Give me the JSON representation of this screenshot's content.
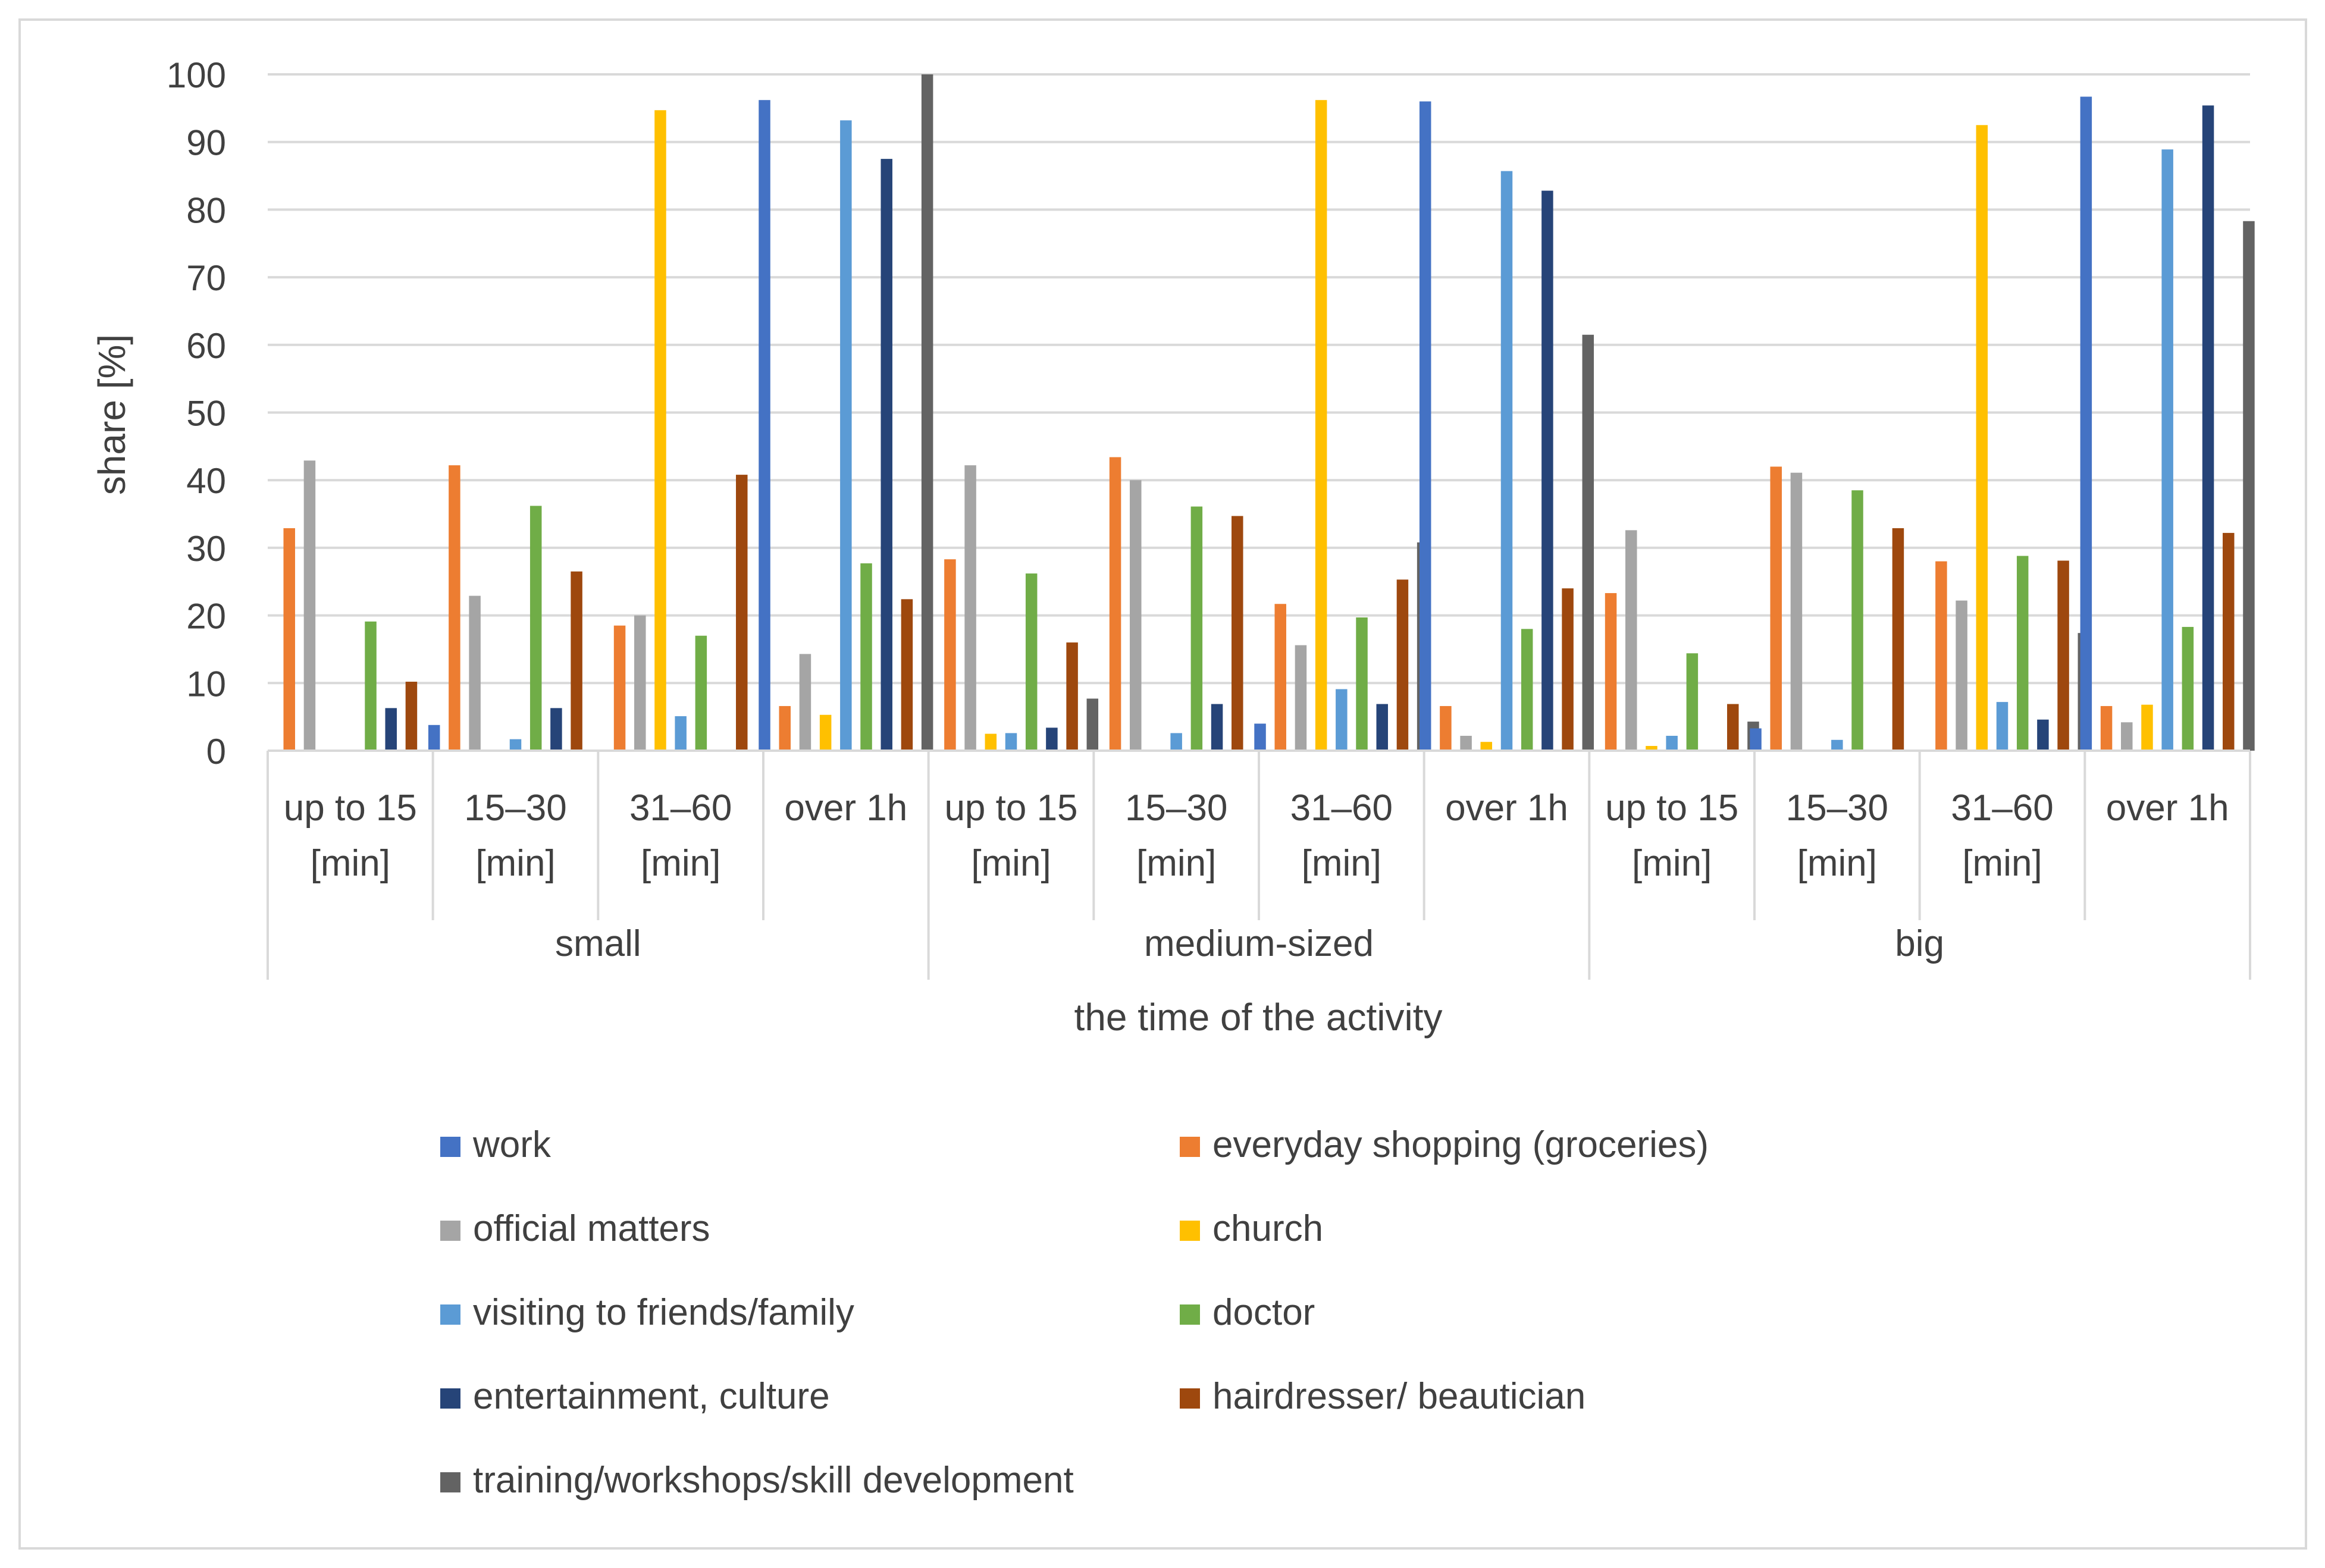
{
  "chart_data": {
    "type": "bar",
    "ylabel": "share [%]",
    "xlabel": "the time of the activity",
    "ylim": [
      0,
      100
    ],
    "yticks": [
      0,
      10,
      20,
      30,
      40,
      50,
      60,
      70,
      80,
      90,
      100
    ],
    "grid": true,
    "legend_position": "bottom",
    "groups": [
      "small",
      "medium-sized",
      "big"
    ],
    "subcategories": [
      [
        "up to 15",
        "[min]"
      ],
      [
        "15–30",
        "[min]"
      ],
      [
        "31–60",
        "[min]"
      ],
      [
        "over 1h",
        ""
      ]
    ],
    "categories": [
      "small | up to 15 [min]",
      "small | 15–30 [min]",
      "small | 31–60 [min]",
      "small | over 1h",
      "medium-sized | up to 15 [min]",
      "medium-sized | 15–30 [min]",
      "medium-sized | 31–60 [min]",
      "medium-sized | over 1h",
      "big | up to 15 [min]",
      "big | 15–30 [min]",
      "big | 31–60 [min]",
      "big | over 1h"
    ],
    "series": [
      {
        "name": "work",
        "color": "#4472C4",
        "values": [
          0,
          3.8,
          0,
          96.2,
          0,
          0,
          4.0,
          96.0,
          0,
          3.3,
          0,
          96.7
        ]
      },
      {
        "name": "everyday shopping (groceries)",
        "color": "#ED7D31",
        "values": [
          32.9,
          42.2,
          18.5,
          6.6,
          28.3,
          43.4,
          21.7,
          6.6,
          23.3,
          42.0,
          28.0,
          6.6
        ]
      },
      {
        "name": "official matters",
        "color": "#A5A5A5",
        "values": [
          42.9,
          22.9,
          20.0,
          14.3,
          42.2,
          40.0,
          15.6,
          2.2,
          32.6,
          41.1,
          22.2,
          4.2
        ]
      },
      {
        "name": "church",
        "color": "#FFC000",
        "values": [
          0,
          0,
          94.7,
          5.3,
          2.5,
          0,
          96.2,
          1.3,
          0.7,
          0,
          92.5,
          6.8
        ]
      },
      {
        "name": "visiting to friends/family",
        "color": "#5B9BD5",
        "values": [
          0,
          1.7,
          5.1,
          93.2,
          2.6,
          2.6,
          9.1,
          85.7,
          2.2,
          1.6,
          7.2,
          88.9
        ]
      },
      {
        "name": "doctor",
        "color": "#70AD47",
        "values": [
          19.1,
          36.2,
          17.0,
          27.7,
          26.2,
          36.1,
          19.7,
          18.0,
          14.4,
          38.5,
          28.8,
          18.3
        ]
      },
      {
        "name": "entertainment, culture",
        "color": "#264478",
        "values": [
          6.3,
          6.3,
          0,
          87.5,
          3.4,
          6.9,
          6.9,
          82.8,
          0,
          0,
          4.6,
          95.4
        ]
      },
      {
        "name": "hairdresser/ beautician",
        "color": "#9E480E",
        "values": [
          10.2,
          26.5,
          40.8,
          22.4,
          16.0,
          34.7,
          25.3,
          24.0,
          6.9,
          32.9,
          28.1,
          32.2
        ]
      },
      {
        "name": "training/workshops/skill development",
        "color": "#636363",
        "values": [
          0,
          0,
          0,
          100,
          7.7,
          0,
          30.8,
          61.5,
          4.3,
          0,
          17.4,
          78.3
        ]
      }
    ]
  }
}
